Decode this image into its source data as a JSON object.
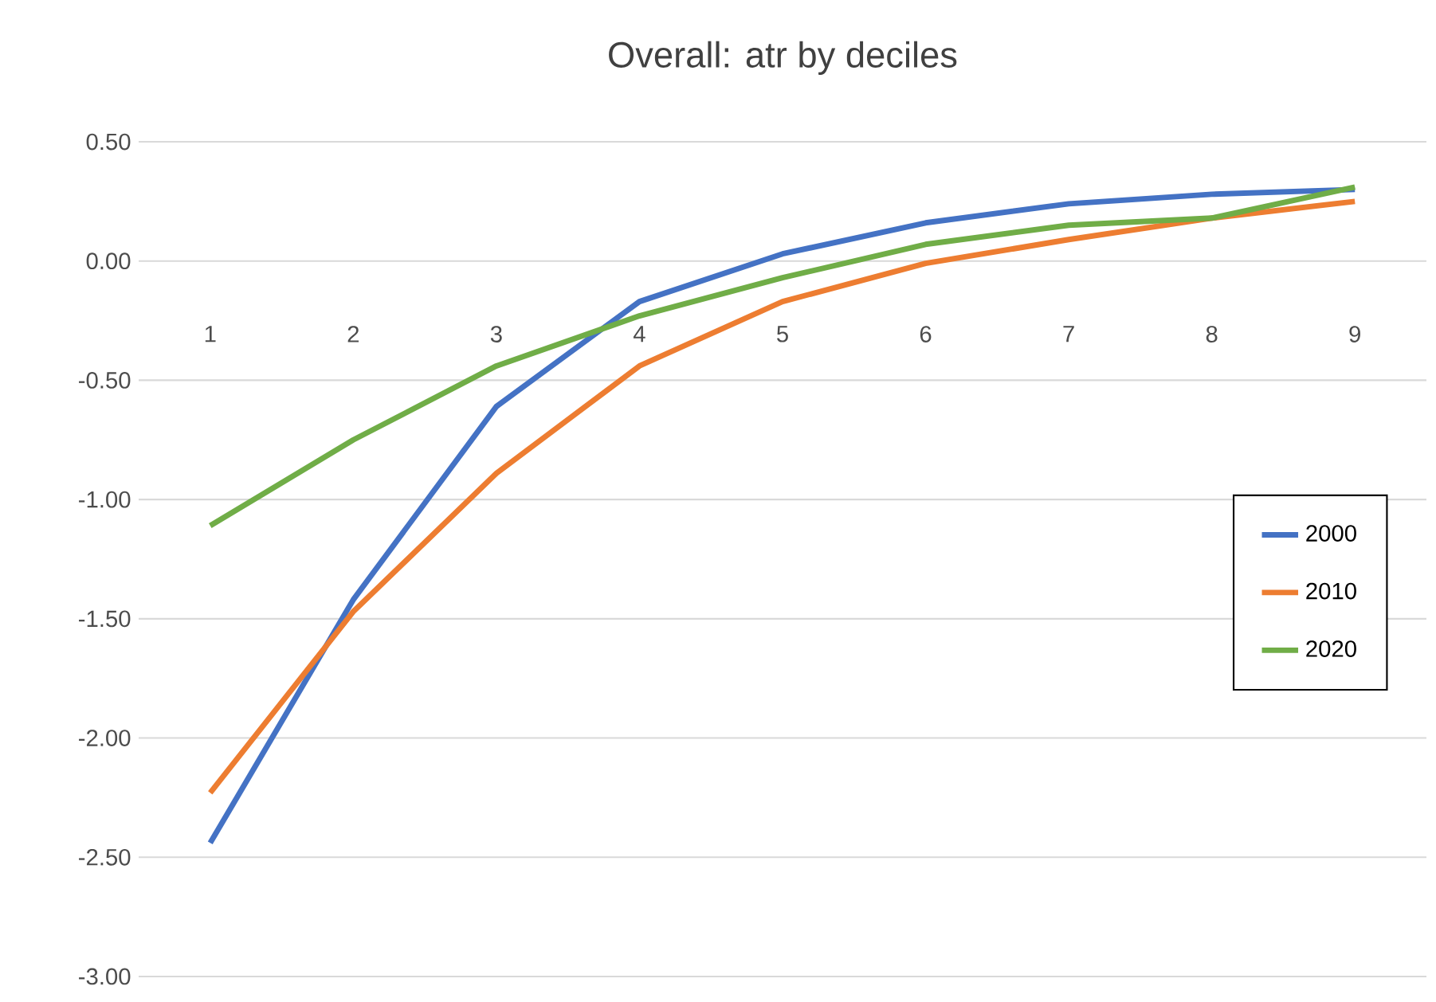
{
  "chart_data": {
    "type": "line",
    "title": "Overall: atr by deciles",
    "categories": [
      "1",
      "2",
      "3",
      "4",
      "5",
      "6",
      "7",
      "8",
      "9"
    ],
    "series": [
      {
        "name": "2000",
        "color": "#4472c4",
        "values": [
          -2.44,
          -1.42,
          -0.61,
          -0.17,
          0.03,
          0.16,
          0.24,
          0.28,
          0.3
        ]
      },
      {
        "name": "2010",
        "color": "#ed7d31",
        "values": [
          -2.23,
          -1.47,
          -0.89,
          -0.44,
          -0.17,
          -0.01,
          0.09,
          0.18,
          0.25
        ]
      },
      {
        "name": "2020",
        "color": "#70ad47",
        "values": [
          -1.11,
          -0.75,
          -0.44,
          -0.23,
          -0.07,
          0.07,
          0.15,
          0.18,
          0.31
        ]
      }
    ],
    "ylim": [
      -3,
      0.5
    ],
    "yticks": [
      {
        "value": -3,
        "label": "-3.00"
      },
      {
        "value": -2.5,
        "label": "-2.50"
      },
      {
        "value": -2,
        "label": "-2.00"
      },
      {
        "value": -1.5,
        "label": "-1.50"
      },
      {
        "value": -1,
        "label": "-1.00"
      },
      {
        "value": -0.5,
        "label": "-0.50"
      },
      {
        "value": 0,
        "label": "0.00"
      },
      {
        "value": 0.5,
        "label": "0.50"
      }
    ],
    "grid": "y",
    "legend": "right",
    "marker": "none",
    "line_style": "solid"
  }
}
